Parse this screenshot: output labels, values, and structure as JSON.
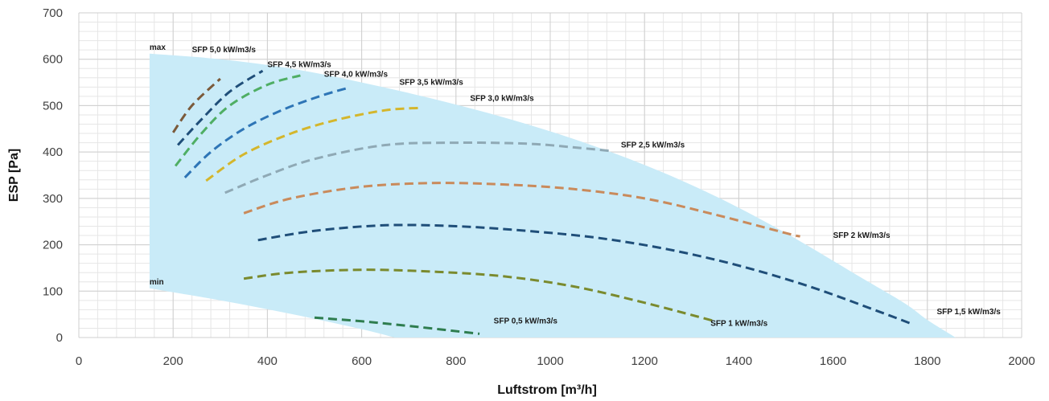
{
  "chart_data": {
    "type": "line",
    "xlabel": "Luftstrom [m³/h]",
    "ylabel": "ESP [Pa]",
    "xlim": [
      0,
      2000
    ],
    "ylim": [
      0,
      700
    ],
    "xticks": [
      "0",
      "200",
      "400",
      "600",
      "800",
      "1000",
      "1200",
      "1400",
      "1600",
      "1800",
      "2000"
    ],
    "yticks": [
      "0",
      "100",
      "200",
      "300",
      "400",
      "500",
      "600",
      "700"
    ],
    "grid": true,
    "colors": {
      "fill": "#c9ebf8",
      "max_curve": "#5b9bd5",
      "min_curve": "#595959",
      "sfp_05": "#2e7d4f",
      "sfp_1": "#7a8a2e",
      "sfp_15": "#1f4e79",
      "sfp_2": "#c98a5b",
      "sfp_25": "#8fa9b5",
      "sfp_3": "#d4b62c",
      "sfp_35": "#2e75b6",
      "sfp_4": "#4fae64",
      "sfp_45": "#1f4e79",
      "sfp_5": "#7b5a3a"
    },
    "labels": {
      "max": "max",
      "min": "min",
      "sfp_05": "SFP 0,5 kW/m3/s",
      "sfp_1": "SFP 1 kW/m3/s",
      "sfp_15": "SFP 1,5 kW/m3/s",
      "sfp_2": "SFP 2 kW/m3/s",
      "sfp_25": "SFP 2,5 kW/m3/s",
      "sfp_3": "SFP 3,0 kW/m3/s",
      "sfp_35": "SFP 3,5 kW/m3/s",
      "sfp_4": "SFP 4,0 kW/m3/s",
      "sfp_45": "SFP 4,5 kW/m3/s",
      "sfp_5": "SFP 5,0 kW/m3/s"
    },
    "series": [
      {
        "id": "max",
        "dashed": false,
        "x": [
          150,
          300,
          450,
          600,
          750,
          900,
          1050,
          1200,
          1350,
          1500,
          1650,
          1750,
          1800,
          1860
        ],
        "y": [
          612,
          600,
          580,
          550,
          515,
          475,
          428,
          372,
          305,
          225,
          135,
          75,
          38,
          0
        ]
      },
      {
        "id": "min",
        "dashed": false,
        "x": [
          150,
          300,
          450,
          600,
          670
        ],
        "y": [
          106,
          80,
          51,
          18,
          0
        ]
      },
      {
        "id": "sfp_05",
        "dashed": true,
        "x": [
          500,
          600,
          700,
          850
        ],
        "y": [
          43,
          35,
          25,
          8
        ]
      },
      {
        "id": "sfp_1",
        "dashed": true,
        "x": [
          350,
          450,
          600,
          750,
          900,
          1050,
          1200,
          1350
        ],
        "y": [
          127,
          140,
          146,
          142,
          132,
          110,
          75,
          35
        ]
      },
      {
        "id": "sfp_15",
        "dashed": true,
        "x": [
          380,
          500,
          650,
          800,
          950,
          1100,
          1250,
          1400,
          1550,
          1700,
          1770
        ],
        "y": [
          210,
          230,
          242,
          240,
          230,
          215,
          190,
          155,
          110,
          55,
          28
        ]
      },
      {
        "id": "sfp_2",
        "dashed": true,
        "x": [
          350,
          450,
          600,
          750,
          900,
          1050,
          1200,
          1350,
          1500,
          1530
        ],
        "y": [
          268,
          300,
          325,
          333,
          330,
          320,
          300,
          265,
          225,
          218
        ]
      },
      {
        "id": "sfp_25",
        "dashed": true,
        "x": [
          310,
          400,
          500,
          650,
          800,
          950,
          1050,
          1130
        ],
        "y": [
          312,
          350,
          385,
          415,
          420,
          418,
          410,
          402
        ]
      },
      {
        "id": "sfp_3",
        "dashed": true,
        "x": [
          270,
          350,
          450,
          550,
          650,
          720
        ],
        "y": [
          338,
          395,
          440,
          470,
          490,
          495
        ]
      },
      {
        "id": "sfp_35",
        "dashed": true,
        "x": [
          225,
          280,
          350,
          430,
          510,
          570
        ],
        "y": [
          345,
          400,
          450,
          490,
          520,
          538
        ]
      },
      {
        "id": "sfp_4",
        "dashed": true,
        "x": [
          205,
          260,
          320,
          400,
          470
        ],
        "y": [
          370,
          440,
          500,
          545,
          565
        ]
      },
      {
        "id": "sfp_45",
        "dashed": true,
        "x": [
          210,
          260,
          320,
          390
        ],
        "y": [
          415,
          470,
          530,
          575
        ]
      },
      {
        "id": "sfp_5",
        "dashed": true,
        "x": [
          200,
          240,
          300
        ],
        "y": [
          442,
          500,
          558
        ]
      }
    ],
    "annotations": [
      {
        "key": "max",
        "x": 150,
        "y": 620
      },
      {
        "key": "min",
        "x": 150,
        "y": 114
      },
      {
        "key": "sfp_5",
        "x": 240,
        "y": 615
      },
      {
        "key": "sfp_45",
        "x": 400,
        "y": 583
      },
      {
        "key": "sfp_4",
        "x": 520,
        "y": 562
      },
      {
        "key": "sfp_35",
        "x": 680,
        "y": 545
      },
      {
        "key": "sfp_3",
        "x": 830,
        "y": 510
      },
      {
        "key": "sfp_25",
        "x": 1150,
        "y": 410
      },
      {
        "key": "sfp_2",
        "x": 1600,
        "y": 215
      },
      {
        "key": "sfp_15",
        "x": 1820,
        "y": 50
      },
      {
        "key": "sfp_1",
        "x": 1340,
        "y": 25
      },
      {
        "key": "sfp_05",
        "x": 880,
        "y": 30
      }
    ]
  }
}
